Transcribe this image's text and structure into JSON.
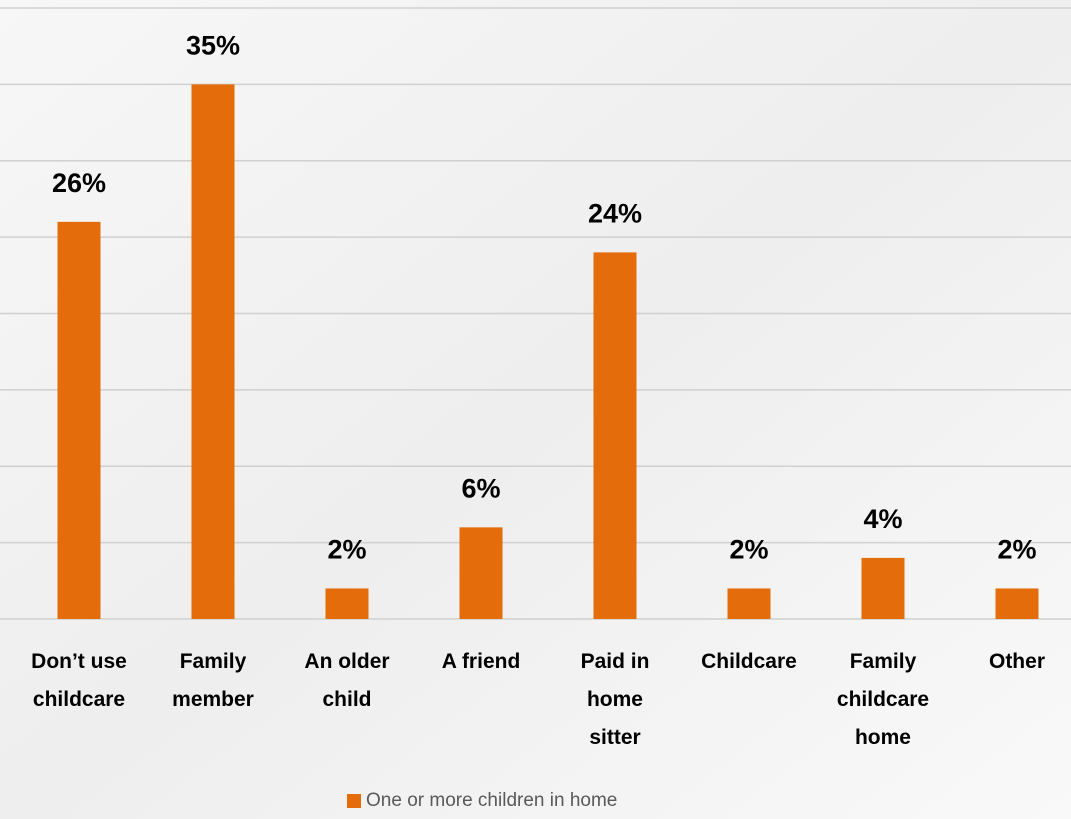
{
  "chart_data": {
    "type": "bar",
    "categories": [
      [
        "Don’t use",
        "childcare"
      ],
      [
        "Family",
        "member"
      ],
      [
        "An older",
        "child"
      ],
      [
        "A friend"
      ],
      [
        "Paid in",
        "home",
        "sitter"
      ],
      [
        "Childcare"
      ],
      [
        "Family",
        "childcare",
        "home"
      ],
      [
        "Other"
      ]
    ],
    "series": [
      {
        "name": "One or more children in home",
        "color": "#e46c0a",
        "values": [
          26,
          35,
          2,
          6,
          24,
          2,
          4,
          2
        ],
        "value_labels": [
          "26%",
          "35%",
          "2%",
          "6%",
          "24%",
          "2%",
          "4%",
          "2%"
        ]
      }
    ],
    "ylim": [
      0,
      40
    ],
    "yticks": [
      0,
      5,
      10,
      15,
      20,
      25,
      30,
      35,
      40
    ],
    "grid": true
  }
}
